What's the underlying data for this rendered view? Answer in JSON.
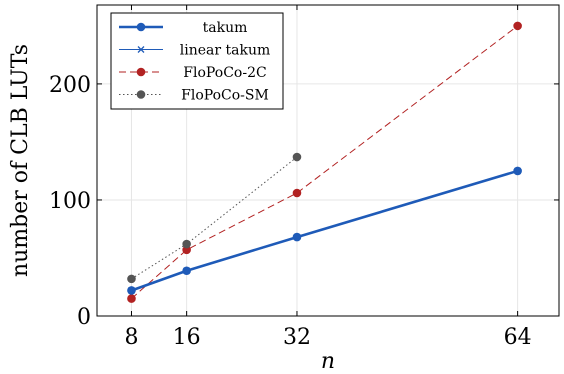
{
  "chart_data": {
    "type": "line",
    "xlabel": "n",
    "ylabel": "number of CLB LUTs",
    "x_ticks": [
      8,
      16,
      32,
      64
    ],
    "y_ticks": [
      0,
      100,
      200
    ],
    "xlim": [
      3,
      70
    ],
    "ylim": [
      0,
      268
    ],
    "grid": true,
    "legend_position": "top-left",
    "series": [
      {
        "name": "takum",
        "x": [
          8,
          16,
          32,
          64
        ],
        "y": [
          22,
          39,
          68,
          125
        ],
        "color": "#1f5bb8",
        "dash": "solid",
        "marker": "circle",
        "width": "thick"
      },
      {
        "name": "linear takum",
        "x": [
          8,
          16,
          32,
          64
        ],
        "y": [
          22,
          39,
          68,
          125
        ],
        "color": "#1f5bb8",
        "dash": "solid",
        "marker": "x",
        "width": "thin"
      },
      {
        "name": "FloPoCo-2C",
        "x": [
          8,
          16,
          32,
          64
        ],
        "y": [
          15,
          57,
          106,
          250
        ],
        "color": "#b22222",
        "dash": "dashed",
        "marker": "circle",
        "width": "thin"
      },
      {
        "name": "FloPoCo-SM",
        "x": [
          8,
          16,
          32
        ],
        "y": [
          32,
          62,
          137
        ],
        "color": "#555555",
        "dash": "dotted",
        "marker": "circle",
        "width": "thin"
      }
    ]
  }
}
